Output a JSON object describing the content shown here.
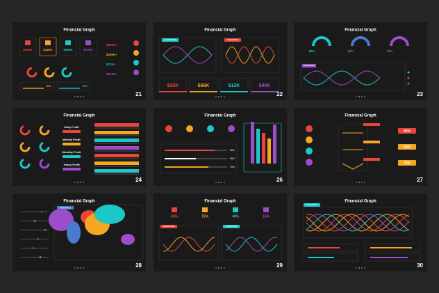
{
  "slides": [
    {
      "title": "Financial Graph",
      "number": "21",
      "stats": [
        "$200K",
        "$320K",
        "$490K",
        "$700K"
      ],
      "side": [
        "$300K+",
        "$200K+",
        "$72K+",
        "$543K+"
      ],
      "progress": [
        "60%",
        "75%"
      ]
    },
    {
      "title": "Financial Graph",
      "number": "22",
      "chart_labels": [
        "Annual Profit",
        "Annual Profit"
      ],
      "stats": [
        "$25K",
        "$66K",
        "$12K",
        "$90K"
      ]
    },
    {
      "title": "Financial Graph",
      "number": "23",
      "gauges": [
        "90%",
        "50%",
        "75%"
      ],
      "chart_labels": [
        "Annual Profit"
      ]
    },
    {
      "title": "Financial Graph",
      "number": "24",
      "rows": [
        "Daily Profit",
        "Weekly Profit",
        "Monthly Profit",
        "Yearly Profit"
      ]
    },
    {
      "title": "Financial Graph",
      "number": "26",
      "progress": [
        "80%",
        "50%",
        "70%"
      ]
    },
    {
      "title": "Financial Graph",
      "number": "27",
      "progress": [
        "80%",
        "50%",
        "75%"
      ]
    },
    {
      "title": "Financial Graph",
      "number": "28",
      "chart_labels": [
        "World Map"
      ]
    },
    {
      "title": "Financial Graph",
      "number": "29",
      "stats": [
        "69%",
        "75%",
        "40%",
        "15%"
      ],
      "chart_labels": [
        "Annual Profit",
        "Annual Profit"
      ]
    },
    {
      "title": "Financial Graph",
      "number": "30",
      "chart_labels": [
        "Annual Profit"
      ]
    }
  ]
}
